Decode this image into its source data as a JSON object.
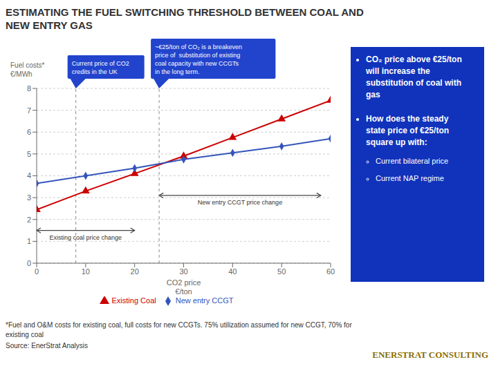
{
  "chart_data": {
    "type": "line",
    "title": "ESTIMATING THE FUEL SWITCHING THRESHOLD BETWEEN COAL AND\nNEW ENTRY GAS",
    "x_label": "CO2 price\n€/ton",
    "y_label": "Fuel costs*\n€/MWh",
    "x": [
      0,
      10,
      20,
      30,
      40,
      50,
      60
    ],
    "series": [
      {
        "name": "Existing Coal",
        "color": "#cc0000",
        "marker": "triangle",
        "values": [
          2.45,
          3.3,
          4.1,
          4.9,
          5.75,
          6.6,
          7.45
        ]
      },
      {
        "name": "New entry CCGT",
        "color": "#3355bb",
        "marker": "diamond",
        "values": [
          3.65,
          4.0,
          4.35,
          4.75,
          5.05,
          5.35,
          5.7
        ]
      }
    ],
    "xlim": [
      0,
      60
    ],
    "ylim": [
      0,
      8
    ],
    "xticks": [
      0,
      10,
      20,
      30,
      40,
      50,
      60
    ],
    "yticks": [
      0,
      1,
      2,
      3,
      4,
      5,
      6,
      7,
      8
    ],
    "grid": true,
    "legend": "bottom",
    "annotations": [
      {
        "text": "Existing coal price change",
        "x": [
          0,
          20
        ],
        "y": 1.5
      },
      {
        "text": "New entry CCGT price change",
        "x": [
          25,
          58
        ],
        "y": 3.1
      }
    ],
    "callouts": [
      {
        "text": "Current price of CO2\ncredits in the UK",
        "x": 8
      },
      {
        "text": "~€25/ton of CO₂ is a breakeven\nprice of  substitution of existing\ncoal capacity with new CCGTs\nin the long term.",
        "x": 25
      }
    ],
    "notes": [
      {
        "text": "CO₂ price above €25/ton\nwill increase the\nsubstitution of coal with\ngas",
        "items": []
      },
      {
        "text": "How does the steady\nstate price of €25/ton\nsquare up with:",
        "items": [
          "Current bilateral price",
          "Current NAP regime"
        ]
      }
    ],
    "footnotes": [
      "*Fuel and O&M costs for existing coal, full costs for new CCGTs. 75% utilization assumed for new CCGT, 70% for\nexisting coal",
      "Source: EnerStrat Analysis"
    ],
    "brand": "ENERSTRAT CONSULTING"
  }
}
